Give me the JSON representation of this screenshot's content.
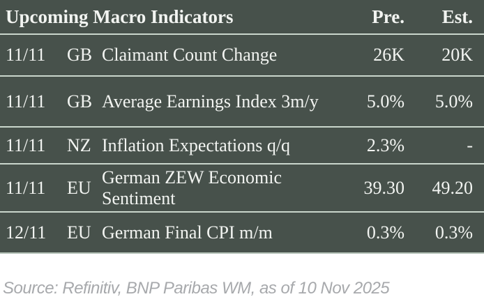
{
  "table": {
    "title": "Upcoming Macro Indicators",
    "columns": {
      "pre": "Pre.",
      "est": "Est."
    },
    "rows": [
      {
        "date": "11/11",
        "country": "GB",
        "indicator": "Claimant Count Change",
        "pre": "26K",
        "est": "20K"
      },
      {
        "date": "11/11",
        "country": "GB",
        "indicator": "Average Earnings Index 3m/y",
        "pre": "5.0%",
        "est": "5.0%"
      },
      {
        "date": "11/11",
        "country": "NZ",
        "indicator": "Inflation Expectations q/q",
        "pre": "2.3%",
        "est": "-"
      },
      {
        "date": "11/11",
        "country": "EU",
        "indicator": "German ZEW Economic Sentiment",
        "pre": "39.30",
        "est": "49.20"
      },
      {
        "date": "12/11",
        "country": "EU",
        "indicator": "German Final CPI m/m",
        "pre": "0.3%",
        "est": "0.3%"
      }
    ]
  },
  "footer": {
    "source": "Source: Refinitiv, BNP Paribas WM, as of 10 Nov 2025"
  },
  "colors": {
    "table_background": "#47514B",
    "divider": "#CAD6CC",
    "table_text": "#F2F4F1",
    "source_text": "#A7A9AC"
  }
}
